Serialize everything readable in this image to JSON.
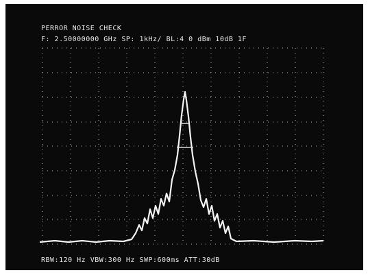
{
  "screen": {
    "title": "PERROR NOISE CHECK",
    "status_line": "F: 2.50000000 GHz  SP:  1kHz/  BL:4   0 dBm 10dB   1F",
    "footer": "RBW:120 Hz  VBW:300 Hz  SWP:600ms  ATT:30dB"
  }
}
